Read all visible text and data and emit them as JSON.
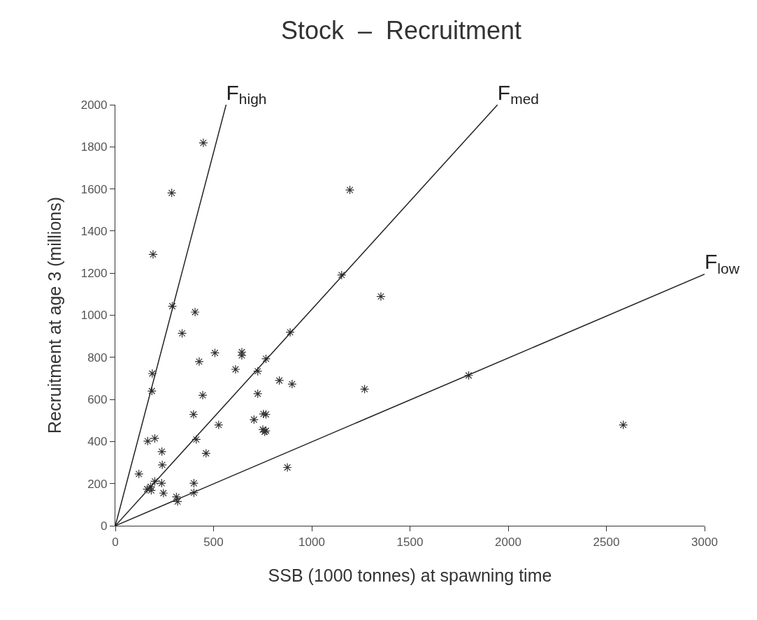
{
  "chart_data": {
    "type": "scatter",
    "title": "Stock  –  Recruitment",
    "xlabel": "SSB (1000 tonnes) at spawning time",
    "ylabel": "Recruitment at age 3 (millions)",
    "xlim": [
      0,
      3000
    ],
    "ylim": [
      0,
      2000
    ],
    "xticks": [
      0,
      500,
      1000,
      1500,
      2000,
      2500,
      3000
    ],
    "yticks": [
      0,
      200,
      400,
      600,
      800,
      1000,
      1200,
      1400,
      1600,
      1800,
      2000
    ],
    "marker": "none",
    "series": [
      {
        "color": "#333333",
        "marker": "cross",
        "x": [
          448,
          287,
          192,
          290,
          406,
          1194,
          1152,
          1352,
          340,
          507,
          644,
          644,
          427,
          612,
          890,
          767,
          725,
          188,
          186,
          835,
          900,
          445,
          725,
          1269,
          1799,
          876,
          767,
          767,
          398,
          706,
          754,
          751,
          760,
          526,
          165,
          201,
          412,
          237,
          462,
          239,
          120,
          201,
          236,
          180,
          162,
          183,
          245,
          400,
          400,
          311,
          317,
          2586
        ],
        "values": [
          1819,
          1581,
          1289,
          1043,
          1015,
          1595,
          1191,
          1089,
          914,
          821,
          825,
          809,
          780,
          743,
          919,
          793,
          734,
          723,
          640,
          690,
          673,
          620,
          627,
          649,
          714,
          277,
          529,
          451,
          529,
          504,
          531,
          457,
          446,
          479,
          402,
          415,
          410,
          352,
          344,
          289,
          246,
          211,
          202,
          185,
          174,
          168,
          155,
          202,
          157,
          137,
          115,
          479
        ]
      },
      {
        "type": "line",
        "name": "F$_{high}$",
        "color": "#222222",
        "x": [
          0,
          564
        ],
        "values": [
          0,
          2000
        ]
      },
      {
        "type": "line",
        "name": "F$_{med}$",
        "color": "#222222",
        "x": [
          0,
          1946
        ],
        "values": [
          0,
          2000
        ]
      },
      {
        "type": "line",
        "name": "F$_{low}$",
        "color": "#222222",
        "x": [
          0,
          3000
        ],
        "values": [
          0,
          1195
        ]
      }
    ]
  }
}
